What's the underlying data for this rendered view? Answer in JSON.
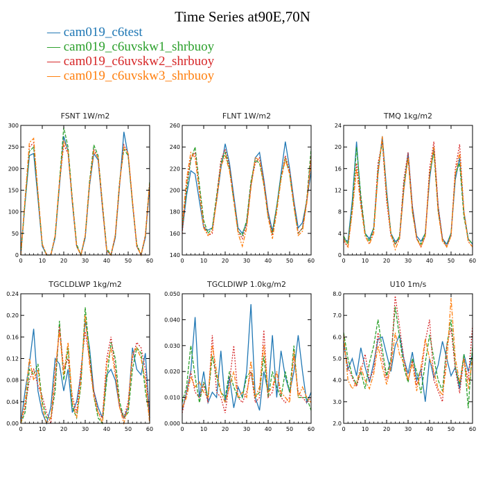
{
  "title": "Time Series at90E,70N",
  "legend": [
    {
      "name": "cam019_c6test",
      "color": "#1f77b4",
      "dash": ""
    },
    {
      "name": "cam019_c6uvskw1_shrbuoy",
      "color": "#2ca02c",
      "dash": "5,2"
    },
    {
      "name": "cam019_c6uvskw2_shrbuoy",
      "color": "#d62728",
      "dash": "2,2"
    },
    {
      "name": "cam019_c6uvskw3_shrbuoy",
      "color": "#ff7f0e",
      "dash": "6,2,2,2"
    }
  ],
  "chart_data": [
    {
      "type": "line",
      "title": "FSNT   1W/m2",
      "x": [
        0,
        2,
        4,
        6,
        8,
        10,
        12,
        14,
        16,
        18,
        20,
        22,
        24,
        26,
        28,
        30,
        32,
        34,
        36,
        38,
        40,
        42,
        44,
        46,
        48,
        50,
        52,
        54,
        56,
        58,
        60
      ],
      "xlim": [
        0,
        60
      ],
      "ylim": [
        0,
        300
      ],
      "xticks": [
        "0",
        "10",
        "20",
        "30",
        "40",
        "50",
        "60"
      ],
      "yticks": [
        "0",
        "50",
        "100",
        "150",
        "200",
        "250",
        "300"
      ],
      "series": [
        {
          "values": [
            0,
            120,
            230,
            235,
            130,
            20,
            0,
            0,
            40,
            160,
            275,
            240,
            120,
            20,
            0,
            40,
            160,
            235,
            220,
            110,
            10,
            0,
            40,
            160,
            285,
            230,
            120,
            20,
            0,
            40,
            160
          ]
        },
        {
          "values": [
            0,
            125,
            240,
            250,
            140,
            25,
            0,
            0,
            45,
            170,
            295,
            250,
            130,
            25,
            0,
            45,
            170,
            255,
            230,
            120,
            15,
            0,
            45,
            170,
            245,
            230,
            120,
            25,
            0,
            45,
            170
          ]
        },
        {
          "values": [
            0,
            130,
            250,
            260,
            140,
            25,
            0,
            0,
            45,
            165,
            255,
            235,
            125,
            20,
            0,
            45,
            165,
            245,
            225,
            115,
            10,
            0,
            45,
            165,
            255,
            235,
            125,
            20,
            0,
            45,
            165
          ]
        },
        {
          "values": [
            0,
            130,
            260,
            270,
            145,
            25,
            0,
            0,
            45,
            170,
            265,
            240,
            125,
            20,
            0,
            45,
            165,
            240,
            225,
            115,
            10,
            0,
            45,
            165,
            250,
            235,
            125,
            20,
            0,
            45,
            165
          ]
        }
      ]
    },
    {
      "type": "line",
      "title": "FLNT   1W/m2",
      "x": [
        0,
        2,
        4,
        6,
        8,
        10,
        12,
        14,
        16,
        18,
        20,
        22,
        24,
        26,
        28,
        30,
        32,
        34,
        36,
        38,
        40,
        42,
        44,
        46,
        48,
        50,
        52,
        54,
        56,
        58,
        60
      ],
      "xlim": [
        0,
        60
      ],
      "ylim": [
        140,
        260
      ],
      "xticks": [
        "0",
        "10",
        "20",
        "30",
        "40",
        "50",
        "60"
      ],
      "yticks": [
        "140",
        "160",
        "180",
        "200",
        "220",
        "240",
        "260"
      ],
      "series": [
        {
          "values": [
            162,
            195,
            218,
            215,
            190,
            165,
            163,
            165,
            190,
            220,
            243,
            225,
            195,
            165,
            160,
            170,
            205,
            230,
            235,
            210,
            180,
            162,
            185,
            215,
            245,
            220,
            190,
            165,
            170,
            190,
            218
          ]
        },
        {
          "values": [
            165,
            200,
            228,
            240,
            205,
            172,
            160,
            165,
            195,
            225,
            235,
            220,
            190,
            162,
            158,
            172,
            208,
            228,
            225,
            205,
            175,
            160,
            185,
            212,
            230,
            215,
            185,
            160,
            165,
            192,
            238
          ]
        },
        {
          "values": [
            160,
            205,
            230,
            235,
            200,
            168,
            158,
            160,
            192,
            228,
            238,
            222,
            192,
            162,
            155,
            168,
            205,
            225,
            230,
            208,
            178,
            158,
            182,
            210,
            232,
            218,
            188,
            160,
            165,
            190,
            232
          ]
        },
        {
          "values": [
            168,
            210,
            235,
            230,
            198,
            165,
            158,
            162,
            190,
            222,
            232,
            218,
            190,
            160,
            148,
            165,
            202,
            230,
            228,
            205,
            175,
            155,
            180,
            210,
            228,
            215,
            185,
            158,
            162,
            188,
            228
          ]
        }
      ]
    },
    {
      "type": "line",
      "title": "TMQ   1kg/m2",
      "x": [
        0,
        2,
        4,
        6,
        8,
        10,
        12,
        14,
        16,
        18,
        20,
        22,
        24,
        26,
        28,
        30,
        32,
        34,
        36,
        38,
        40,
        42,
        44,
        46,
        48,
        50,
        52,
        54,
        56,
        58,
        60
      ],
      "xlim": [
        0,
        60
      ],
      "ylim": [
        0,
        24
      ],
      "xticks": [
        "0",
        "10",
        "20",
        "30",
        "40",
        "50",
        "60"
      ],
      "yticks": [
        "0",
        "4",
        "8",
        "12",
        "16",
        "20",
        "24"
      ],
      "series": [
        {
          "values": [
            3,
            2.5,
            10,
            21,
            10,
            4,
            3,
            5,
            15,
            22,
            12,
            4,
            2.5,
            3,
            12,
            19,
            9,
            3.5,
            2.5,
            4,
            14,
            20,
            9,
            3,
            2,
            4,
            14,
            18,
            8,
            3,
            2
          ]
        },
        {
          "values": [
            3.5,
            2,
            9,
            20,
            11,
            4,
            2.5,
            5,
            16,
            21,
            11,
            4,
            2,
            3.5,
            13,
            18,
            8,
            3,
            2,
            4,
            15,
            19,
            8,
            3,
            1.5,
            4,
            15,
            17,
            7,
            3,
            2
          ]
        },
        {
          "values": [
            2.5,
            1.5,
            8,
            17,
            10,
            3.5,
            2,
            4.5,
            17,
            21,
            10,
            3.5,
            2,
            3,
            14,
            19,
            9,
            3,
            1.5,
            3.5,
            16,
            21,
            9,
            3,
            1.5,
            3.5,
            16,
            20.5,
            8,
            2.5,
            1.5
          ]
        },
        {
          "values": [
            3,
            1.5,
            8,
            16,
            9,
            3.5,
            2,
            4,
            15,
            22,
            11,
            4,
            1,
            3,
            12,
            18,
            8,
            3,
            1.5,
            3.5,
            15,
            20,
            8,
            2.5,
            1.5,
            3.5,
            15,
            19,
            8,
            2.5,
            1.5
          ]
        }
      ]
    },
    {
      "type": "line",
      "title": "TGCLDLWP   1kg/m2",
      "x": [
        0,
        2,
        4,
        6,
        8,
        10,
        12,
        14,
        16,
        18,
        20,
        22,
        24,
        26,
        28,
        30,
        32,
        34,
        36,
        38,
        40,
        42,
        44,
        46,
        48,
        50,
        52,
        54,
        56,
        58,
        60
      ],
      "xlim": [
        0,
        60
      ],
      "ylim": [
        0,
        0.24
      ],
      "xticks": [
        "0",
        "10",
        "20",
        "30",
        "40",
        "50",
        "60"
      ],
      "yticks": [
        "0.00",
        "0.04",
        "0.08",
        "0.12",
        "0.16",
        "0.20",
        "0.24"
      ],
      "series": [
        {
          "values": [
            0,
            0.06,
            0.11,
            0.175,
            0.06,
            0.02,
            0.0,
            0.03,
            0.12,
            0.11,
            0.06,
            0.1,
            0.02,
            0.04,
            0.09,
            0.19,
            0.14,
            0.06,
            0.03,
            0.01,
            0.09,
            0.1,
            0.08,
            0.03,
            0.01,
            0.03,
            0.14,
            0.1,
            0.09,
            0.13,
            0.01
          ]
        },
        {
          "values": [
            0,
            0.02,
            0.1,
            0.09,
            0.11,
            0.04,
            0.01,
            0.01,
            0.06,
            0.19,
            0.08,
            0.14,
            0.03,
            0.01,
            0.07,
            0.215,
            0.13,
            0.05,
            0.01,
            0.0,
            0.08,
            0.15,
            0.12,
            0.04,
            0.01,
            0.02,
            0.1,
            0.14,
            0.13,
            0.06,
            0.01
          ]
        },
        {
          "values": [
            0,
            0.03,
            0.08,
            0.1,
            0.07,
            0.05,
            0.02,
            0.0,
            0.08,
            0.18,
            0.1,
            0.12,
            0.05,
            0.02,
            0.1,
            0.17,
            0.12,
            0.06,
            0.02,
            0.01,
            0.12,
            0.16,
            0.1,
            0.03,
            0.01,
            0.04,
            0.12,
            0.15,
            0.14,
            0.1,
            0.01
          ]
        },
        {
          "values": [
            0,
            0.04,
            0.12,
            0.08,
            0.1,
            0.03,
            0.0,
            0.01,
            0.1,
            0.17,
            0.09,
            0.15,
            0.04,
            0.01,
            0.08,
            0.2,
            0.11,
            0.05,
            0.02,
            0.0,
            0.11,
            0.14,
            0.09,
            0.03,
            0.0,
            0.03,
            0.13,
            0.14,
            0.12,
            0.08,
            0.0
          ]
        }
      ]
    },
    {
      "type": "line",
      "title": "TGCLDIWP   1.0kg/m2",
      "x": [
        0,
        2,
        4,
        6,
        8,
        10,
        12,
        14,
        16,
        18,
        20,
        22,
        24,
        26,
        28,
        30,
        32,
        34,
        36,
        38,
        40,
        42,
        44,
        46,
        48,
        50,
        52,
        54,
        56,
        58,
        60
      ],
      "xlim": [
        0,
        60
      ],
      "ylim": [
        0,
        0.05
      ],
      "xticks": [
        "0",
        "10",
        "20",
        "30",
        "40",
        "50",
        "60"
      ],
      "yticks": [
        "0.000",
        "0.010",
        "0.020",
        "0.030",
        "0.040",
        "0.050"
      ],
      "series": [
        {
          "values": [
            0.005,
            0.012,
            0.02,
            0.041,
            0.01,
            0.02,
            0.008,
            0.012,
            0.01,
            0.028,
            0.008,
            0.018,
            0.006,
            0.014,
            0.01,
            0.02,
            0.046,
            0.01,
            0.005,
            0.02,
            0.012,
            0.034,
            0.01,
            0.028,
            0.018,
            0.012,
            0.02,
            0.034,
            0.02,
            0.008,
            0.012
          ]
        },
        {
          "values": [
            0.008,
            0.014,
            0.03,
            0.018,
            0.008,
            0.016,
            0.01,
            0.026,
            0.018,
            0.012,
            0.01,
            0.02,
            0.014,
            0.01,
            0.01,
            0.018,
            0.02,
            0.01,
            0.012,
            0.026,
            0.01,
            0.02,
            0.014,
            0.01,
            0.02,
            0.012,
            0.03,
            0.01,
            0.01,
            0.01,
            0.005
          ]
        },
        {
          "values": [
            0.004,
            0.012,
            0.02,
            0.012,
            0.01,
            0.015,
            0.008,
            0.034,
            0.012,
            0.01,
            0.004,
            0.016,
            0.03,
            0.01,
            0.008,
            0.012,
            0.02,
            0.008,
            0.01,
            0.036,
            0.01,
            0.012,
            0.02,
            0.01,
            0.008,
            0.01,
            0.026,
            0.012,
            0.01,
            0.008,
            0.01
          ]
        },
        {
          "values": [
            0.006,
            0.01,
            0.018,
            0.014,
            0.016,
            0.012,
            0.01,
            0.03,
            0.02,
            0.012,
            0.008,
            0.014,
            0.02,
            0.01,
            0.012,
            0.01,
            0.024,
            0.01,
            0.014,
            0.03,
            0.012,
            0.014,
            0.02,
            0.012,
            0.01,
            0.008,
            0.028,
            0.01,
            0.014,
            0.01,
            0.008
          ]
        }
      ]
    },
    {
      "type": "line",
      "title": "U10   1m/s",
      "x": [
        0,
        2,
        4,
        6,
        8,
        10,
        12,
        14,
        16,
        18,
        20,
        22,
        24,
        26,
        28,
        30,
        32,
        34,
        36,
        38,
        40,
        42,
        44,
        46,
        48,
        50,
        52,
        54,
        56,
        58,
        60
      ],
      "xlim": [
        0,
        60
      ],
      "ylim": [
        2,
        8
      ],
      "xticks": [
        "0",
        "10",
        "20",
        "30",
        "40",
        "50",
        "60"
      ],
      "yticks": [
        "2.0",
        "3.0",
        "4.0",
        "5.0",
        "6.0",
        "7.0",
        "8.0"
      ],
      "series": [
        {
          "values": [
            5.8,
            4.5,
            5.0,
            4.2,
            5.5,
            4.6,
            3.9,
            4.8,
            5.9,
            6.0,
            5.2,
            4.4,
            5.6,
            6.1,
            5.0,
            4.3,
            5.3,
            4.0,
            4.5,
            3.0,
            5.0,
            4.1,
            4.7,
            5.8,
            5.0,
            4.2,
            4.6,
            3.6,
            5.2,
            4.4,
            5.2
          ]
        },
        {
          "values": [
            6.2,
            5.0,
            4.2,
            3.8,
            4.4,
            3.6,
            4.8,
            5.6,
            6.8,
            5.4,
            4.2,
            5.0,
            7.4,
            6.0,
            4.6,
            3.9,
            5.0,
            4.4,
            3.4,
            4.8,
            6.1,
            5.0,
            4.0,
            3.5,
            5.6,
            6.8,
            4.6,
            3.8,
            5.2,
            2.7,
            5.6
          ]
        },
        {
          "values": [
            5.6,
            4.6,
            4.1,
            3.7,
            4.4,
            5.2,
            4.0,
            4.5,
            6.2,
            5.0,
            4.0,
            4.8,
            7.9,
            6.5,
            5.0,
            4.0,
            4.9,
            3.8,
            4.2,
            5.8,
            6.8,
            4.0,
            3.5,
            3.0,
            5.6,
            6.4,
            4.5,
            3.4,
            5.0,
            4.0,
            6.5
          ]
        },
        {
          "values": [
            6.1,
            4.0,
            3.6,
            3.9,
            4.6,
            4.0,
            3.6,
            4.3,
            5.6,
            4.6,
            3.8,
            4.6,
            6.2,
            5.2,
            4.8,
            4.0,
            4.8,
            3.5,
            4.6,
            5.9,
            5.0,
            4.4,
            3.6,
            3.3,
            4.8,
            7.8,
            5.0,
            3.9,
            5.0,
            3.6,
            5.0
          ]
        }
      ]
    }
  ]
}
